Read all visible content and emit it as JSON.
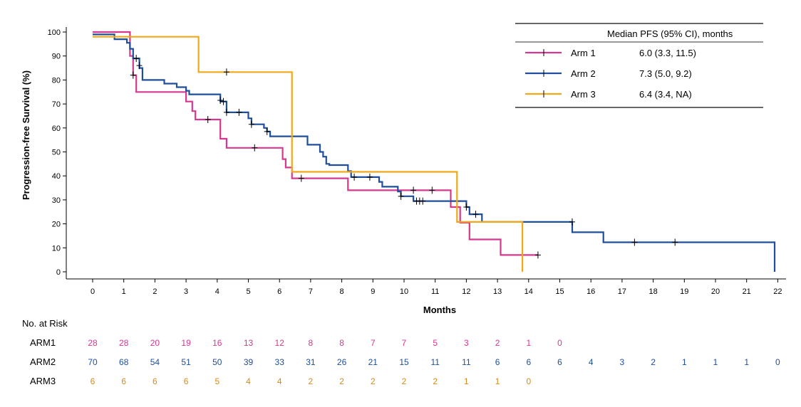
{
  "chart_data": {
    "type": "line",
    "subtype": "kaplan-meier",
    "xlabel": "Months",
    "ylabel": "Progression-free Survival (%)",
    "xlim": [
      0,
      22
    ],
    "ylim": [
      0,
      100
    ],
    "xticks": [
      "0",
      "1",
      "2",
      "3",
      "4",
      "5",
      "6",
      "7",
      "8",
      "9",
      "10",
      "11",
      "12",
      "13",
      "14",
      "15",
      "16",
      "17",
      "18",
      "19",
      "20",
      "21",
      "22"
    ],
    "yticks": [
      "0",
      "10",
      "20",
      "30",
      "40",
      "50",
      "60",
      "70",
      "80",
      "90",
      "100"
    ],
    "legend": {
      "header": "Median PFS (95% CI), months",
      "position": "top-right"
    },
    "series": [
      {
        "name": "Arm 1",
        "median": "6.0 (3.3, 11.5)",
        "color": "#d6388f",
        "steps": [
          [
            0,
            100
          ],
          [
            1.2,
            100
          ],
          [
            1.2,
            90
          ],
          [
            1.3,
            90
          ],
          [
            1.3,
            82
          ],
          [
            1.4,
            82
          ],
          [
            1.4,
            75
          ],
          [
            3.0,
            75
          ],
          [
            3.0,
            71
          ],
          [
            3.2,
            71
          ],
          [
            3.2,
            67
          ],
          [
            3.3,
            67
          ],
          [
            3.3,
            63.5
          ],
          [
            4.1,
            63.5
          ],
          [
            4.1,
            55.5
          ],
          [
            4.3,
            55.5
          ],
          [
            4.3,
            51.7
          ],
          [
            6.1,
            51.7
          ],
          [
            6.1,
            47
          ],
          [
            6.2,
            47
          ],
          [
            6.2,
            43.5
          ],
          [
            6.4,
            43.5
          ],
          [
            6.4,
            39
          ],
          [
            8.2,
            39
          ],
          [
            8.2,
            34
          ],
          [
            11.5,
            34
          ],
          [
            11.5,
            27
          ],
          [
            11.8,
            27
          ],
          [
            11.8,
            20.5
          ],
          [
            12.1,
            20.5
          ],
          [
            12.1,
            13.5
          ],
          [
            13.1,
            13.5
          ],
          [
            13.1,
            7
          ],
          [
            14.3,
            7
          ]
        ],
        "censors": [
          [
            1.3,
            82
          ],
          [
            3.7,
            63.5
          ],
          [
            5.2,
            51.7
          ],
          [
            6.7,
            39
          ],
          [
            14.3,
            7
          ]
        ]
      },
      {
        "name": "Arm 2",
        "median": "7.3 (5.0, 9.2)",
        "color": "#1f4e9c",
        "steps": [
          [
            0,
            99
          ],
          [
            0.7,
            99
          ],
          [
            0.7,
            97
          ],
          [
            1.1,
            97
          ],
          [
            1.1,
            95.5
          ],
          [
            1.2,
            95.5
          ],
          [
            1.2,
            93
          ],
          [
            1.3,
            93
          ],
          [
            1.3,
            89
          ],
          [
            1.5,
            89
          ],
          [
            1.5,
            85
          ],
          [
            1.6,
            85
          ],
          [
            1.6,
            80
          ],
          [
            2.3,
            80
          ],
          [
            2.3,
            78.5
          ],
          [
            2.7,
            78.5
          ],
          [
            2.7,
            77
          ],
          [
            3.0,
            77
          ],
          [
            3.0,
            75.5
          ],
          [
            3.1,
            75.5
          ],
          [
            3.1,
            74
          ],
          [
            4.1,
            74
          ],
          [
            4.1,
            71
          ],
          [
            4.3,
            71
          ],
          [
            4.3,
            66.5
          ],
          [
            5.0,
            66.5
          ],
          [
            5.0,
            64
          ],
          [
            5.1,
            64
          ],
          [
            5.1,
            61.5
          ],
          [
            5.5,
            61.5
          ],
          [
            5.5,
            60
          ],
          [
            5.6,
            60
          ],
          [
            5.6,
            58.5
          ],
          [
            5.7,
            58.5
          ],
          [
            5.7,
            56.5
          ],
          [
            6.9,
            56.5
          ],
          [
            6.9,
            53
          ],
          [
            7.3,
            53
          ],
          [
            7.3,
            50
          ],
          [
            7.4,
            50
          ],
          [
            7.4,
            48
          ],
          [
            7.5,
            48
          ],
          [
            7.5,
            45
          ],
          [
            7.6,
            45
          ],
          [
            7.6,
            44.5
          ],
          [
            8.2,
            44.5
          ],
          [
            8.2,
            42
          ],
          [
            8.3,
            42
          ],
          [
            8.3,
            39.5
          ],
          [
            9.2,
            39.5
          ],
          [
            9.2,
            37.5
          ],
          [
            9.3,
            37.5
          ],
          [
            9.3,
            35.5
          ],
          [
            9.8,
            35.5
          ],
          [
            9.8,
            33.5
          ],
          [
            9.9,
            33.5
          ],
          [
            9.9,
            31.5
          ],
          [
            10.3,
            31.5
          ],
          [
            10.3,
            29.5
          ],
          [
            12.0,
            29.5
          ],
          [
            12.0,
            27
          ],
          [
            12.1,
            27
          ],
          [
            12.1,
            24
          ],
          [
            12.5,
            24
          ],
          [
            12.5,
            20.8
          ],
          [
            15.4,
            20.8
          ],
          [
            15.4,
            16.5
          ],
          [
            16.4,
            16.5
          ],
          [
            16.4,
            12.3
          ],
          [
            21.9,
            12.3
          ],
          [
            21.9,
            0
          ]
        ],
        "censors": [
          [
            1.4,
            89
          ],
          [
            1.5,
            86
          ],
          [
            4.1,
            71.5
          ],
          [
            4.2,
            71
          ],
          [
            4.3,
            66.5
          ],
          [
            4.7,
            66.5
          ],
          [
            5.1,
            61.5
          ],
          [
            5.6,
            58.5
          ],
          [
            8.4,
            39.5
          ],
          [
            8.9,
            39.5
          ],
          [
            9.9,
            31.5
          ],
          [
            10.3,
            34
          ],
          [
            10.4,
            29.5
          ],
          [
            10.5,
            29.5
          ],
          [
            10.6,
            29.5
          ],
          [
            10.9,
            34
          ],
          [
            12.0,
            27
          ],
          [
            12.3,
            24
          ],
          [
            15.4,
            20.8
          ],
          [
            17.4,
            12.3
          ],
          [
            18.7,
            12.3
          ]
        ]
      },
      {
        "name": "Arm 3",
        "median": "6.4 (3.4, NA)",
        "color": "#f0a818",
        "steps": [
          [
            0,
            98
          ],
          [
            3.4,
            98
          ],
          [
            3.4,
            83.3
          ],
          [
            6.4,
            83.3
          ],
          [
            6.4,
            41.7
          ],
          [
            11.7,
            41.7
          ],
          [
            11.7,
            20.8
          ],
          [
            13.8,
            20.8
          ],
          [
            13.8,
            0
          ]
        ],
        "censors": [
          [
            4.3,
            83.3
          ]
        ]
      }
    ],
    "risk_table": {
      "title": "No. at Risk",
      "rows": [
        {
          "label": "ARM1",
          "color": "#d6388f",
          "values": [
            "28",
            "28",
            "20",
            "19",
            "16",
            "13",
            "12",
            "8",
            "8",
            "7",
            "7",
            "5",
            "3",
            "2",
            "1",
            "0"
          ]
        },
        {
          "label": "ARM2",
          "color": "#1f4e9c",
          "values": [
            "70",
            "68",
            "54",
            "51",
            "50",
            "39",
            "33",
            "31",
            "26",
            "21",
            "15",
            "11",
            "11",
            "6",
            "6",
            "6",
            "4",
            "3",
            "2",
            "1",
            "1",
            "1",
            "0"
          ]
        },
        {
          "label": "ARM3",
          "color": "#d68a1a",
          "values": [
            "6",
            "6",
            "6",
            "6",
            "5",
            "4",
            "4",
            "2",
            "2",
            "2",
            "2",
            "2",
            "1",
            "1",
            "0"
          ]
        }
      ]
    }
  }
}
